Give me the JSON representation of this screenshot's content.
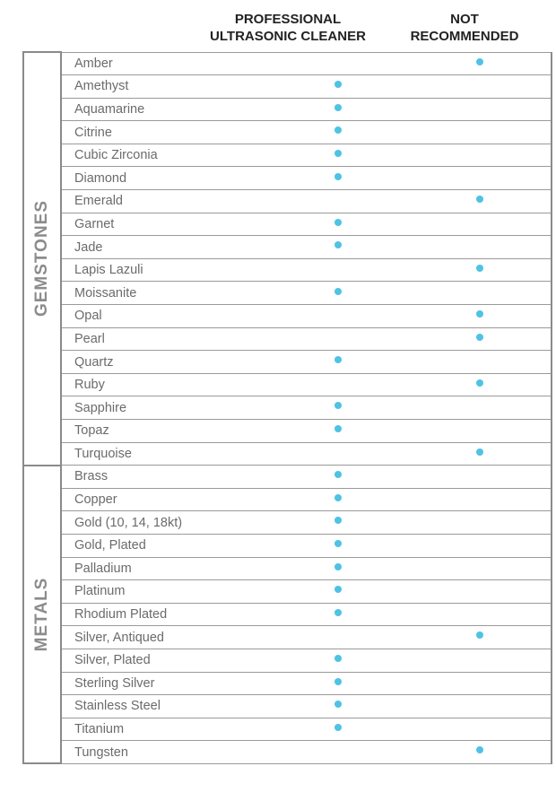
{
  "headers": {
    "professional": [
      "PROFESSIONAL",
      "ULTRASONIC CLEANER"
    ],
    "not_recommended": [
      "NOT",
      "RECOMMENDED"
    ]
  },
  "colors": {
    "dot": "#4ec3e3",
    "category_text": "#8c8c8c",
    "grid": "#9a9a9a"
  },
  "categories": [
    {
      "label": "GEMSTONES",
      "items": [
        {
          "name": "Amber",
          "mark": "not_recommended"
        },
        {
          "name": "Amethyst",
          "mark": "professional"
        },
        {
          "name": "Aquamarine",
          "mark": "professional"
        },
        {
          "name": "Citrine",
          "mark": "professional"
        },
        {
          "name": "Cubic Zirconia",
          "mark": "professional"
        },
        {
          "name": "Diamond",
          "mark": "professional"
        },
        {
          "name": "Emerald",
          "mark": "not_recommended"
        },
        {
          "name": "Garnet",
          "mark": "professional"
        },
        {
          "name": "Jade",
          "mark": "professional"
        },
        {
          "name": "Lapis Lazuli",
          "mark": "not_recommended"
        },
        {
          "name": "Moissanite",
          "mark": "professional"
        },
        {
          "name": "Opal",
          "mark": "not_recommended"
        },
        {
          "name": "Pearl",
          "mark": "not_recommended"
        },
        {
          "name": "Quartz",
          "mark": "professional"
        },
        {
          "name": "Ruby",
          "mark": "not_recommended"
        },
        {
          "name": "Sapphire",
          "mark": "professional"
        },
        {
          "name": "Topaz",
          "mark": "professional"
        },
        {
          "name": "Turquoise",
          "mark": "not_recommended"
        }
      ]
    },
    {
      "label": "METALS",
      "items": [
        {
          "name": "Brass",
          "mark": "professional"
        },
        {
          "name": "Copper",
          "mark": "professional"
        },
        {
          "name": "Gold (10, 14, 18kt)",
          "mark": "professional"
        },
        {
          "name": "Gold, Plated",
          "mark": "professional"
        },
        {
          "name": "Palladium",
          "mark": "professional"
        },
        {
          "name": "Platinum",
          "mark": "professional"
        },
        {
          "name": "Rhodium Plated",
          "mark": "professional"
        },
        {
          "name": "Silver, Antiqued",
          "mark": "not_recommended"
        },
        {
          "name": "Silver, Plated",
          "mark": "professional"
        },
        {
          "name": "Sterling Silver",
          "mark": "professional"
        },
        {
          "name": "Stainless Steel",
          "mark": "professional"
        },
        {
          "name": "Titanium",
          "mark": "professional"
        },
        {
          "name": "Tungsten",
          "mark": "not_recommended"
        }
      ]
    }
  ]
}
